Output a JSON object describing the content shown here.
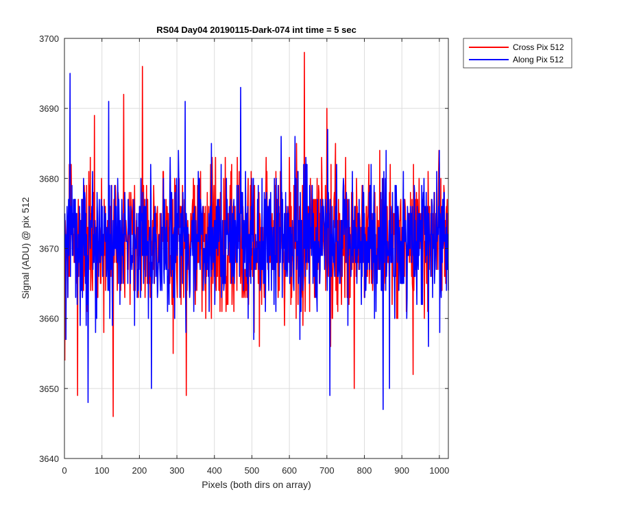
{
  "chart_data": {
    "type": "line",
    "title": "RS04 Day04 20190115-Dark-074 int time = 5 sec",
    "xlabel": "Pixels (both dirs on array)",
    "ylabel": "Signal (ADU) @ pix 512",
    "xlim": [
      0,
      1024
    ],
    "ylim": [
      3640,
      3700
    ],
    "xticks": [
      0,
      100,
      200,
      300,
      400,
      500,
      600,
      700,
      800,
      900,
      1000
    ],
    "yticks": [
      3640,
      3650,
      3660,
      3670,
      3680,
      3690,
      3700
    ],
    "grid": true,
    "legend_position": "outside-top-right",
    "series": [
      {
        "name": "Cross Pix 512",
        "color": "#ff0000",
        "noise": {
          "mean": 3671,
          "sd": 5.2,
          "seed": 17
        },
        "x": [
          1,
          35,
          80,
          130,
          158,
          208,
          325,
          640,
          700,
          773,
          930
        ],
        "values": [
          3654,
          3649,
          3689,
          3646,
          3692,
          3696,
          3649,
          3698,
          3690,
          3650,
          3652
        ]
      },
      {
        "name": "Along Pix 512",
        "color": "#0000ff",
        "noise": {
          "mean": 3671,
          "sd": 5.0,
          "seed": 91
        },
        "x": [
          4,
          15,
          63,
          118,
          232,
          322,
          470,
          708,
          850,
          867,
          1000
        ],
        "values": [
          3657,
          3695,
          3648,
          3691,
          3650,
          3691,
          3693,
          3649,
          3647,
          3650,
          3684
        ]
      }
    ]
  }
}
